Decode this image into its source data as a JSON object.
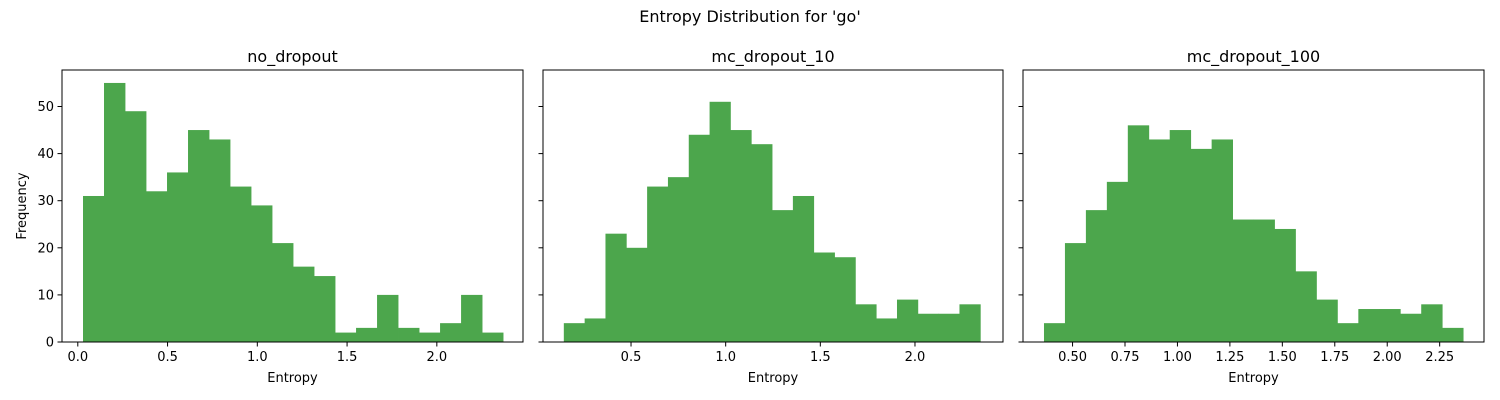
{
  "suptitle": "Entropy Distribution for 'go'",
  "chart_data": [
    {
      "type": "bar",
      "title": "no_dropout",
      "xlabel": "Entropy",
      "ylabel": "Frequency",
      "bar_color": "#4ca64c",
      "xlim": [
        -0.088,
        2.48
      ],
      "ylim": [
        0,
        57.75
      ],
      "xticks": [
        0.0,
        0.5,
        1.0,
        1.5,
        2.0
      ],
      "xtick_labels": [
        "0.0",
        "0.5",
        "1.0",
        "1.5",
        "2.0"
      ],
      "yticks": [
        0,
        10,
        20,
        30,
        40,
        50
      ],
      "ytick_labels": [
        "0",
        "10",
        "20",
        "30",
        "40",
        "50"
      ],
      "show_yticklabels": true,
      "bin_edges": [
        0.029,
        0.146,
        0.263,
        0.38,
        0.497,
        0.614,
        0.731,
        0.848,
        0.965,
        1.082,
        1.199,
        1.316,
        1.433,
        1.55,
        1.667,
        1.784,
        1.901,
        2.018,
        2.135,
        2.252,
        2.369
      ],
      "values": [
        31,
        55,
        49,
        32,
        36,
        45,
        43,
        33,
        29,
        21,
        16,
        14,
        2,
        3,
        10,
        3,
        2,
        4,
        10,
        2
      ]
    },
    {
      "type": "bar",
      "title": "mc_dropout_10",
      "xlabel": "Entropy",
      "ylabel": "",
      "bar_color": "#4ca64c",
      "xlim": [
        0.035,
        2.465
      ],
      "ylim": [
        0,
        57.75
      ],
      "xticks": [
        0.5,
        1.0,
        1.5,
        2.0
      ],
      "xtick_labels": [
        "0.5",
        "1.0",
        "1.5",
        "2.0"
      ],
      "yticks": [
        0,
        10,
        20,
        30,
        40,
        50
      ],
      "ytick_labels": [
        "0",
        "10",
        "20",
        "30",
        "40",
        "50"
      ],
      "show_yticklabels": false,
      "bin_edges": [
        0.145,
        0.255,
        0.365,
        0.475,
        0.585,
        0.695,
        0.805,
        0.915,
        1.025,
        1.135,
        1.245,
        1.355,
        1.465,
        1.575,
        1.685,
        1.795,
        1.905,
        2.015,
        2.125,
        2.235,
        2.345
      ],
      "values": [
        4,
        5,
        23,
        20,
        33,
        35,
        44,
        51,
        45,
        42,
        28,
        31,
        19,
        18,
        8,
        5,
        9,
        6,
        6,
        8
      ]
    },
    {
      "type": "bar",
      "title": "mc_dropout_100",
      "xlabel": "Entropy",
      "ylabel": "",
      "bar_color": "#4ca64c",
      "xlim": [
        0.2638,
        2.4613
      ],
      "ylim": [
        0,
        57.75
      ],
      "xticks": [
        0.5,
        0.75,
        1.0,
        1.25,
        1.5,
        1.75,
        2.0,
        2.25
      ],
      "xtick_labels": [
        "0.50",
        "0.75",
        "1.00",
        "1.25",
        "1.50",
        "1.75",
        "2.00",
        "2.25"
      ],
      "yticks": [
        0,
        10,
        20,
        30,
        40,
        50
      ],
      "ytick_labels": [
        "0",
        "10",
        "20",
        "30",
        "40",
        "50"
      ],
      "show_yticklabels": false,
      "bin_edges": [
        0.3638,
        0.4637,
        0.5636,
        0.6635,
        0.7634,
        0.8633,
        0.9632,
        1.0631,
        1.163,
        1.2629,
        1.3628,
        1.4627,
        1.5626,
        1.6625,
        1.7624,
        1.8623,
        1.9622,
        2.0621,
        2.162,
        2.2619,
        2.3618
      ],
      "values": [
        4,
        21,
        28,
        34,
        46,
        43,
        45,
        41,
        43,
        26,
        26,
        24,
        15,
        9,
        4,
        7,
        7,
        6,
        8,
        3
      ]
    }
  ]
}
